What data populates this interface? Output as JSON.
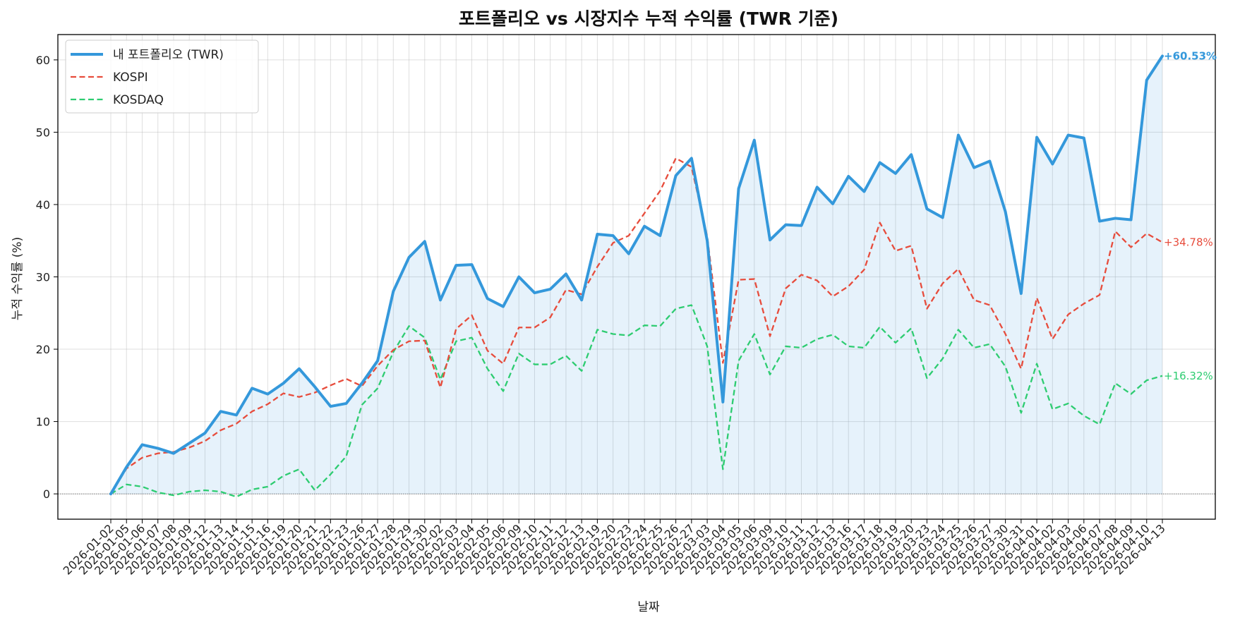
{
  "chart_data": {
    "type": "line",
    "title": "포트폴리오 vs 시장지수 누적 수익률 (TWR 기준)",
    "xlabel": "날짜",
    "ylabel": "누적 수익률 (%)",
    "ylim": [
      -3.5,
      63.5
    ],
    "yticks": [
      0,
      10,
      20,
      30,
      40,
      50,
      60
    ],
    "grid": true,
    "legend_position": "top-left",
    "x": [
      "2026-01-02",
      "2026-01-05",
      "2026-01-06",
      "2026-01-07",
      "2026-01-08",
      "2026-01-09",
      "2026-01-12",
      "2026-01-13",
      "2026-01-14",
      "2026-01-15",
      "2026-01-16",
      "2026-01-19",
      "2026-01-20",
      "2026-01-21",
      "2026-01-22",
      "2026-01-23",
      "2026-01-26",
      "2026-01-27",
      "2026-01-28",
      "2026-01-29",
      "2026-01-30",
      "2026-02-02",
      "2026-02-03",
      "2026-02-04",
      "2026-02-05",
      "2026-02-06",
      "2026-02-09",
      "2026-02-10",
      "2026-02-11",
      "2026-02-12",
      "2026-02-13",
      "2026-02-19",
      "2026-02-20",
      "2026-02-23",
      "2026-02-24",
      "2026-02-25",
      "2026-02-26",
      "2026-02-27",
      "2026-03-03",
      "2026-03-04",
      "2026-03-05",
      "2026-03-06",
      "2026-03-09",
      "2026-03-10",
      "2026-03-11",
      "2026-03-12",
      "2026-03-13",
      "2026-03-16",
      "2026-03-17",
      "2026-03-18",
      "2026-03-19",
      "2026-03-20",
      "2026-03-23",
      "2026-03-24",
      "2026-03-25",
      "2026-03-26",
      "2026-03-27",
      "2026-03-30",
      "2026-03-31",
      "2026-04-01",
      "2026-04-02",
      "2026-04-03",
      "2026-04-06",
      "2026-04-07",
      "2026-04-08",
      "2026-04-09",
      "2026-04-10",
      "2026-04-13"
    ],
    "series": [
      {
        "name": "내 포트폴리오 (TWR)",
        "color": "#3498db",
        "style": "solid",
        "end_label": "+60.53%",
        "values": [
          0,
          3.7,
          6.8,
          6.3,
          5.6,
          7.0,
          8.4,
          11.4,
          10.9,
          14.6,
          13.8,
          15.3,
          17.3,
          14.8,
          12.1,
          12.5,
          15.3,
          18.4,
          28.0,
          32.7,
          34.9,
          26.8,
          31.6,
          31.7,
          27.0,
          25.9,
          30.0,
          27.8,
          28.3,
          30.4,
          26.8,
          35.9,
          35.7,
          33.2,
          37.0,
          35.7,
          44.0,
          46.4,
          35.0,
          12.7,
          42.2,
          48.9,
          35.1,
          37.2,
          37.1,
          42.4,
          40.1,
          43.9,
          41.8,
          45.8,
          44.3,
          46.9,
          39.4,
          38.2,
          49.6,
          45.1,
          46.0,
          39.0,
          27.7,
          49.3,
          45.6,
          49.6,
          49.2,
          37.7,
          38.1,
          37.9,
          57.2,
          60.53
        ]
      },
      {
        "name": "KOSPI",
        "color": "#e74c3c",
        "style": "dashed",
        "end_label": "+34.78%",
        "values": [
          0,
          3.5,
          5.0,
          5.6,
          5.8,
          6.4,
          7.3,
          8.8,
          9.7,
          11.4,
          12.4,
          13.9,
          13.4,
          14.0,
          15.0,
          15.9,
          14.9,
          17.7,
          19.9,
          21.1,
          21.2,
          14.7,
          22.8,
          24.7,
          19.8,
          18.0,
          23.0,
          23.0,
          24.4,
          28.2,
          27.6,
          31.4,
          34.7,
          35.7,
          38.8,
          41.9,
          46.4,
          45.2,
          35.6,
          18.1,
          29.6,
          29.7,
          21.8,
          28.4,
          30.3,
          29.5,
          27.3,
          28.7,
          31.0,
          37.5,
          33.6,
          34.3,
          25.6,
          29.1,
          31.1,
          26.8,
          26.1,
          22.1,
          17.3,
          27.1,
          21.4,
          24.8,
          26.3,
          27.5,
          36.3,
          34.1,
          36.0,
          34.78
        ]
      },
      {
        "name": "KOSDAQ",
        "color": "#2ecc71",
        "style": "dashed",
        "end_label": "+16.32%",
        "values": [
          0,
          1.3,
          1.0,
          0.2,
          -0.2,
          0.3,
          0.5,
          0.3,
          -0.4,
          0.6,
          1.0,
          2.5,
          3.4,
          0.5,
          2.7,
          5.2,
          12.3,
          14.6,
          19.6,
          23.2,
          21.6,
          15.8,
          21.1,
          21.6,
          17.3,
          14.2,
          19.4,
          17.9,
          17.9,
          19.1,
          17.0,
          22.7,
          22.1,
          21.9,
          23.3,
          23.2,
          25.6,
          26.1,
          20.4,
          3.4,
          18.4,
          22.1,
          16.5,
          20.4,
          20.2,
          21.4,
          22.0,
          20.4,
          20.2,
          23.1,
          20.9,
          22.9,
          16.0,
          18.7,
          22.7,
          20.2,
          20.7,
          17.6,
          11.2,
          18.0,
          11.7,
          12.5,
          10.8,
          9.6,
          15.3,
          13.8,
          15.7,
          16.32
        ]
      }
    ]
  }
}
